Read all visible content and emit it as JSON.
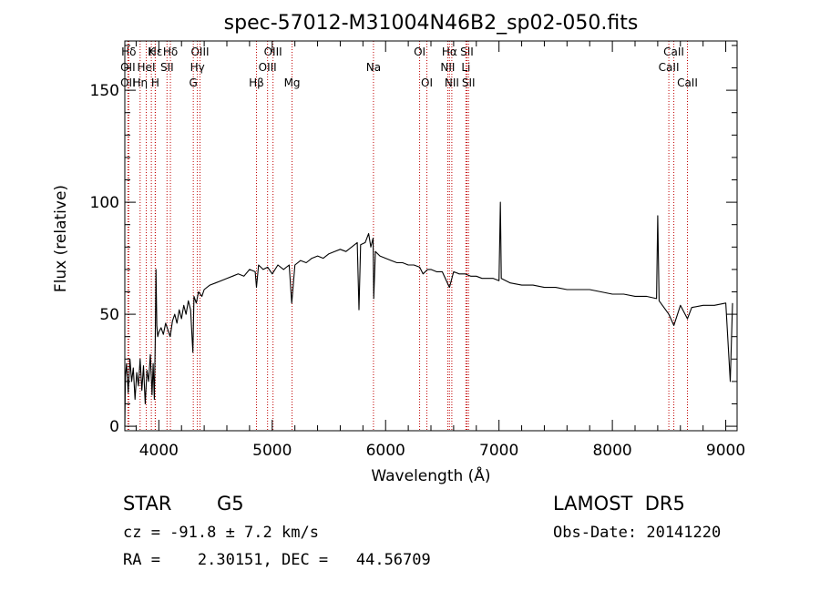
{
  "chart_data": {
    "type": "line",
    "title": "spec-57012-M31004N46B2_sp02-050.fits",
    "xlabel": "Wavelength (Å)",
    "ylabel": "Flux (relative)",
    "xlim": [
      3700,
      9100
    ],
    "ylim": [
      -2,
      172
    ],
    "x_ticks": [
      {
        "value": 4000,
        "label": "4000"
      },
      {
        "value": 5000,
        "label": "5000"
      },
      {
        "value": 6000,
        "label": "6000"
      },
      {
        "value": 7000,
        "label": "7000"
      },
      {
        "value": 8000,
        "label": "8000"
      },
      {
        "value": 9000,
        "label": "9000"
      }
    ],
    "y_ticks": [
      {
        "value": 0,
        "label": "0"
      },
      {
        "value": 50,
        "label": "50"
      },
      {
        "value": 100,
        "label": "100"
      },
      {
        "value": 150,
        "label": "150"
      }
    ],
    "series": [
      {
        "points": [
          [
            3700,
            0
          ],
          [
            3705,
            22
          ],
          [
            3715,
            28
          ],
          [
            3730,
            15
          ],
          [
            3745,
            30
          ],
          [
            3760,
            20
          ],
          [
            3775,
            26
          ],
          [
            3790,
            12
          ],
          [
            3805,
            24
          ],
          [
            3820,
            18
          ],
          [
            3835,
            30
          ],
          [
            3850,
            16
          ],
          [
            3865,
            27
          ],
          [
            3880,
            10
          ],
          [
            3895,
            25
          ],
          [
            3910,
            20
          ],
          [
            3925,
            32
          ],
          [
            3940,
            14
          ],
          [
            3950,
            28
          ],
          [
            3960,
            12
          ],
          [
            3968,
            38
          ],
          [
            3975,
            70
          ],
          [
            3982,
            45
          ],
          [
            3990,
            40
          ],
          [
            4000,
            42
          ],
          [
            4020,
            44
          ],
          [
            4040,
            41
          ],
          [
            4060,
            46
          ],
          [
            4080,
            43
          ],
          [
            4100,
            40
          ],
          [
            4120,
            47
          ],
          [
            4140,
            50
          ],
          [
            4160,
            46
          ],
          [
            4180,
            52
          ],
          [
            4200,
            48
          ],
          [
            4220,
            54
          ],
          [
            4240,
            50
          ],
          [
            4260,
            56
          ],
          [
            4280,
            52
          ],
          [
            4300,
            33
          ],
          [
            4310,
            58
          ],
          [
            4330,
            55
          ],
          [
            4350,
            60
          ],
          [
            4380,
            58
          ],
          [
            4400,
            61
          ],
          [
            4450,
            63
          ],
          [
            4500,
            64
          ],
          [
            4550,
            65
          ],
          [
            4600,
            66
          ],
          [
            4650,
            67
          ],
          [
            4700,
            68
          ],
          [
            4750,
            67
          ],
          [
            4800,
            70
          ],
          [
            4850,
            69
          ],
          [
            4861,
            62
          ],
          [
            4880,
            72
          ],
          [
            4920,
            70
          ],
          [
            4960,
            71
          ],
          [
            5000,
            68
          ],
          [
            5050,
            72
          ],
          [
            5100,
            70
          ],
          [
            5150,
            72
          ],
          [
            5172,
            55
          ],
          [
            5200,
            72
          ],
          [
            5250,
            74
          ],
          [
            5300,
            73
          ],
          [
            5350,
            75
          ],
          [
            5400,
            76
          ],
          [
            5450,
            75
          ],
          [
            5500,
            77
          ],
          [
            5550,
            78
          ],
          [
            5600,
            79
          ],
          [
            5650,
            78
          ],
          [
            5700,
            80
          ],
          [
            5750,
            82
          ],
          [
            5765,
            52
          ],
          [
            5780,
            81
          ],
          [
            5820,
            82
          ],
          [
            5850,
            86
          ],
          [
            5870,
            80
          ],
          [
            5890,
            84
          ],
          [
            5895,
            57
          ],
          [
            5910,
            78
          ],
          [
            5950,
            76
          ],
          [
            6000,
            75
          ],
          [
            6050,
            74
          ],
          [
            6100,
            73
          ],
          [
            6150,
            73
          ],
          [
            6200,
            72
          ],
          [
            6250,
            72
          ],
          [
            6300,
            71
          ],
          [
            6330,
            68
          ],
          [
            6370,
            70
          ],
          [
            6400,
            70
          ],
          [
            6450,
            69
          ],
          [
            6500,
            69
          ],
          [
            6563,
            62
          ],
          [
            6600,
            69
          ],
          [
            6650,
            68
          ],
          [
            6700,
            68
          ],
          [
            6750,
            67
          ],
          [
            6800,
            67
          ],
          [
            6850,
            66
          ],
          [
            6900,
            66
          ],
          [
            6950,
            66
          ],
          [
            7000,
            65
          ],
          [
            7012,
            100
          ],
          [
            7020,
            66
          ],
          [
            7100,
            64
          ],
          [
            7200,
            63
          ],
          [
            7300,
            63
          ],
          [
            7400,
            62
          ],
          [
            7500,
            62
          ],
          [
            7600,
            61
          ],
          [
            7700,
            61
          ],
          [
            7800,
            61
          ],
          [
            7900,
            60
          ],
          [
            8000,
            59
          ],
          [
            8100,
            59
          ],
          [
            8200,
            58
          ],
          [
            8300,
            58
          ],
          [
            8390,
            57
          ],
          [
            8400,
            94
          ],
          [
            8412,
            56
          ],
          [
            8498,
            50
          ],
          [
            8542,
            45
          ],
          [
            8600,
            54
          ],
          [
            8662,
            48
          ],
          [
            8700,
            53
          ],
          [
            8800,
            54
          ],
          [
            8900,
            54
          ],
          [
            9000,
            55
          ],
          [
            9040,
            20
          ],
          [
            9060,
            55
          ]
        ]
      }
    ],
    "spectral_lines": [
      {
        "label": "Hδ",
        "wavelength": 3735,
        "row": 1
      },
      {
        "label": "OII",
        "wavelength": 3727,
        "row": 2
      },
      {
        "label": "OII",
        "wavelength": 3727,
        "row": 3
      },
      {
        "label": "Hε",
        "wavelength": 3970,
        "row": 1
      },
      {
        "label": "HeI",
        "wavelength": 3889,
        "row": 2
      },
      {
        "label": "Hη",
        "wavelength": 3835,
        "row": 3
      },
      {
        "label": "K",
        "wavelength": 3934,
        "row": 1
      },
      {
        "label": "H",
        "wavelength": 3968,
        "row": 3
      },
      {
        "label": "Hδ",
        "wavelength": 4102,
        "row": 1
      },
      {
        "label": "SII",
        "wavelength": 4072,
        "row": 2
      },
      {
        "label": "OIII",
        "wavelength": 4363,
        "row": 1
      },
      {
        "label": "Hγ",
        "wavelength": 4340,
        "row": 2
      },
      {
        "label": "G",
        "wavelength": 4304,
        "row": 3
      },
      {
        "label": "Hβ",
        "wavelength": 4861,
        "row": 3
      },
      {
        "label": "OIII",
        "wavelength": 5007,
        "row": 1
      },
      {
        "label": "OIII",
        "wavelength": 4959,
        "row": 2
      },
      {
        "label": "Mg",
        "wavelength": 5175,
        "row": 3
      },
      {
        "label": "Na",
        "wavelength": 5893,
        "row": 2
      },
      {
        "label": "OI",
        "wavelength": 6300,
        "row": 1
      },
      {
        "label": "OI",
        "wavelength": 6364,
        "row": 3
      },
      {
        "label": "Hα",
        "wavelength": 6563,
        "row": 1
      },
      {
        "label": "NII",
        "wavelength": 6548,
        "row": 2
      },
      {
        "label": "NII",
        "wavelength": 6584,
        "row": 3
      },
      {
        "label": "SII",
        "wavelength": 6717,
        "row": 1
      },
      {
        "label": "Li",
        "wavelength": 6708,
        "row": 2
      },
      {
        "label": "SII",
        "wavelength": 6731,
        "row": 3
      },
      {
        "label": "CaII",
        "wavelength": 8542,
        "row": 1
      },
      {
        "label": "CaII",
        "wavelength": 8498,
        "row": 2
      },
      {
        "label": "CaII",
        "wavelength": 8662,
        "row": 3
      }
    ]
  },
  "info": {
    "object_class": "STAR",
    "subclass": "G5",
    "survey": "LAMOST  DR5",
    "redshift": "cz = -91.8 ± 7.2 km/s",
    "obs_date": "Obs-Date: 20141220",
    "coords": "RA =    2.30151, DEC =   44.56709"
  }
}
